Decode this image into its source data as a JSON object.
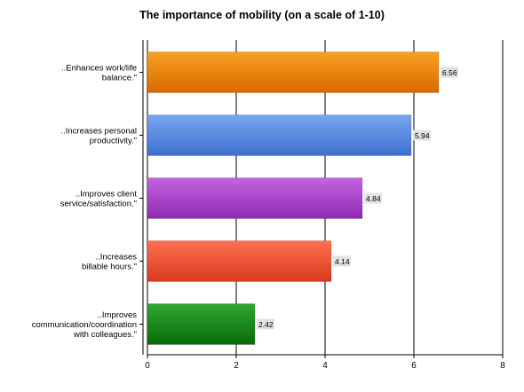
{
  "chart_data": {
    "type": "bar",
    "orientation": "horizontal",
    "title": "The importance of mobility (on a scale of 1-10)",
    "xlabel": "",
    "ylabel": "",
    "xlim": [
      0,
      8
    ],
    "xticks": [
      0,
      2,
      4,
      6,
      8
    ],
    "grid": true,
    "categories": [
      [
        "..Enhances work/life",
        "balance.\""
      ],
      [
        "..Increases personal",
        "productivity.\""
      ],
      [
        "..Improves client",
        "service/satisfaction.\""
      ],
      [
        "..Increases",
        "billable hours.\""
      ],
      [
        "..Improves",
        "communication/coordination",
        "with colleagues.\""
      ]
    ],
    "values": [
      6.56,
      5.94,
      4.84,
      4.14,
      2.42
    ],
    "value_labels": [
      "6.56",
      "5.94",
      "4.84",
      "4.14",
      "2.42"
    ],
    "bar_colors": [
      {
        "top": "#f8a020",
        "bottom": "#d96a00"
      },
      {
        "top": "#7aa6ee",
        "bottom": "#3d6fd0"
      },
      {
        "top": "#c464e0",
        "bottom": "#8e2ab2"
      },
      {
        "top": "#ff7050",
        "bottom": "#d83a20"
      },
      {
        "top": "#30a830",
        "bottom": "#0a6a0a"
      }
    ]
  }
}
